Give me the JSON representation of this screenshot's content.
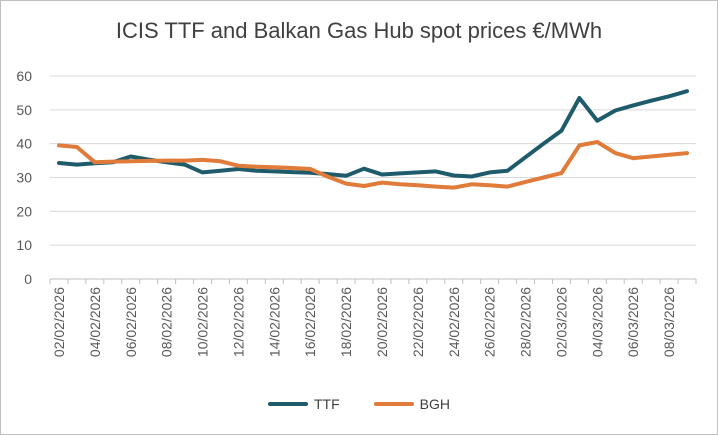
{
  "chart_data": {
    "type": "line",
    "title": "ICIS TTF and Balkan Gas Hub spot prices €/MWh",
    "xlabel": "",
    "ylabel": "",
    "ylim": [
      0,
      60
    ],
    "yticks": [
      0,
      10,
      20,
      30,
      40,
      50,
      60
    ],
    "grid": true,
    "legend_position": "bottom",
    "x": [
      "02/02/2026",
      "03/02/2026",
      "04/02/2026",
      "05/02/2026",
      "06/02/2026",
      "07/02/2026",
      "08/02/2026",
      "09/02/2026",
      "10/02/2026",
      "11/02/2026",
      "12/02/2026",
      "13/02/2026",
      "14/02/2026",
      "15/02/2026",
      "16/02/2026",
      "17/02/2026",
      "18/02/2026",
      "19/02/2026",
      "20/02/2026",
      "21/02/2026",
      "22/02/2026",
      "23/02/2026",
      "24/02/2026",
      "25/02/2026",
      "26/02/2026",
      "27/02/2026",
      "28/02/2026",
      "01/03/2026",
      "02/03/2026",
      "03/03/2026",
      "04/03/2026",
      "05/03/2026",
      "06/03/2026",
      "07/03/2026",
      "08/03/2026",
      "09/03/2026"
    ],
    "xtick_labels": [
      "02/02/2026",
      "04/02/2026",
      "06/02/2026",
      "08/02/2026",
      "10/02/2026",
      "12/02/2026",
      "14/02/2026",
      "16/02/2026",
      "18/02/2026",
      "20/02/2026",
      "22/02/2026",
      "24/02/2026",
      "26/02/2026",
      "28/02/2026",
      "02/03/2026",
      "04/03/2026",
      "06/03/2026",
      "08/03/2026"
    ],
    "series": [
      {
        "name": "TTF",
        "color": "#1f5c6b",
        "values": [
          34.3,
          33.8,
          34.2,
          34.5,
          36.2,
          35.3,
          34.5,
          33.8,
          31.5,
          32.0,
          32.5,
          32.0,
          31.8,
          31.6,
          31.4,
          31.0,
          30.5,
          32.6,
          30.9,
          31.2,
          31.5,
          31.8,
          30.6,
          30.3,
          31.5,
          32.0,
          36.0,
          40.0,
          43.8,
          53.5,
          46.8,
          49.8,
          51.3,
          52.7,
          54.0,
          55.5
        ]
      },
      {
        "name": "BGH",
        "color": "#e07b39",
        "values": [
          39.5,
          39.0,
          34.5,
          34.7,
          34.8,
          34.9,
          35.0,
          35.0,
          35.2,
          34.8,
          33.5,
          33.2,
          33.0,
          32.8,
          32.5,
          30.2,
          28.2,
          27.5,
          28.5,
          28.0,
          27.7,
          27.3,
          27.0,
          28.0,
          27.7,
          27.3,
          28.7,
          30.0,
          31.3,
          39.5,
          40.5,
          37.2,
          35.7,
          36.2,
          36.7,
          37.2
        ]
      }
    ]
  }
}
